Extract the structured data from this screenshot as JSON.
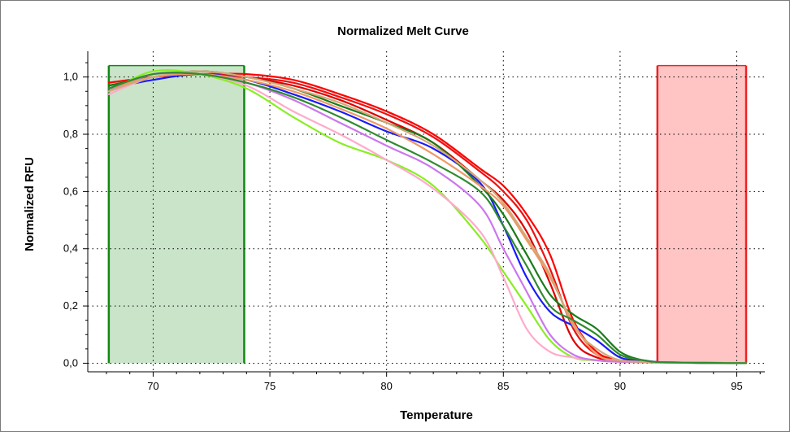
{
  "chart_data": {
    "type": "line",
    "title": "Normalized Melt Curve",
    "xlabel": "Temperature",
    "ylabel": "Normalized RFU",
    "xlim": [
      67.2,
      96.2
    ],
    "ylim": [
      -0.03,
      1.09
    ],
    "xticks": [
      70,
      75,
      80,
      85,
      90,
      95
    ],
    "xtick_labels": [
      "70",
      "75",
      "80",
      "85",
      "90",
      "95"
    ],
    "yticks": [
      0,
      0.2,
      0.4,
      0.6,
      0.8,
      1.0
    ],
    "ytick_labels": [
      "0,0",
      "0,2",
      "0,4",
      "0,6",
      "0,8",
      "1,0"
    ],
    "grid": true,
    "regions": [
      {
        "from": 68.1,
        "to": 73.9,
        "fill": "#c9e4c9",
        "edge": "#118811"
      },
      {
        "from": 91.6,
        "to": 95.4,
        "fill": "#ffc4c4",
        "edge": "#ee2222"
      }
    ],
    "series": [
      {
        "color": "#ff0000",
        "x": [
          68.1,
          70,
          72,
          74,
          76,
          78,
          80,
          82,
          84,
          85,
          86,
          87,
          88,
          89,
          90,
          91,
          92,
          95.4
        ],
        "y": [
          0.98,
          1.0,
          1.01,
          1.01,
          0.99,
          0.94,
          0.88,
          0.8,
          0.68,
          0.62,
          0.52,
          0.38,
          0.15,
          0.04,
          0.01,
          0.005,
          0.003,
          0.0
        ]
      },
      {
        "color": "#ee1111",
        "x": [
          68.1,
          70,
          72,
          74,
          76,
          78,
          80,
          82,
          84,
          85,
          86,
          87,
          88,
          89,
          90,
          91,
          92,
          95.4
        ],
        "y": [
          0.97,
          1.0,
          1.01,
          1.0,
          0.98,
          0.93,
          0.87,
          0.79,
          0.67,
          0.6,
          0.5,
          0.33,
          0.12,
          0.03,
          0.01,
          0.005,
          0.003,
          0.0
        ]
      },
      {
        "color": "#dd0000",
        "x": [
          68.1,
          70,
          72,
          74,
          76,
          78,
          80,
          82,
          84,
          85,
          86,
          87,
          88,
          89,
          90,
          91,
          92,
          95.4
        ],
        "y": [
          0.96,
          1.0,
          1.02,
          1.0,
          0.97,
          0.92,
          0.85,
          0.77,
          0.64,
          0.57,
          0.46,
          0.28,
          0.08,
          0.02,
          0.01,
          0.005,
          0.002,
          0.0
        ]
      },
      {
        "color": "#1a1aff",
        "x": [
          68.1,
          70,
          72,
          74,
          76,
          78,
          80,
          82,
          84,
          85,
          86,
          87,
          88,
          89,
          90,
          91,
          92,
          95.4
        ],
        "y": [
          0.96,
          0.99,
          1.01,
          0.99,
          0.94,
          0.88,
          0.81,
          0.75,
          0.63,
          0.48,
          0.3,
          0.18,
          0.13,
          0.08,
          0.02,
          0.01,
          0.003,
          0.0
        ]
      },
      {
        "color": "#1a7a1a",
        "x": [
          68.1,
          70,
          72,
          74,
          76,
          78,
          80,
          82,
          84,
          85,
          86,
          87,
          88,
          89,
          90,
          91,
          92,
          95.4
        ],
        "y": [
          0.97,
          1.0,
          1.02,
          1.0,
          0.96,
          0.9,
          0.84,
          0.77,
          0.62,
          0.52,
          0.38,
          0.24,
          0.17,
          0.12,
          0.04,
          0.01,
          0.003,
          0.0
        ]
      },
      {
        "color": "#88ee22",
        "x": [
          68.1,
          70,
          72,
          74,
          76,
          78,
          80,
          82,
          84,
          85,
          86,
          87,
          88,
          89,
          90,
          91,
          92,
          95.4
        ],
        "y": [
          0.95,
          1.02,
          1.01,
          0.96,
          0.86,
          0.77,
          0.71,
          0.62,
          0.44,
          0.32,
          0.2,
          0.08,
          0.02,
          0.01,
          0.005,
          0.003,
          0.002,
          0.0
        ]
      },
      {
        "color": "#ffaacc",
        "x": [
          68.1,
          70,
          72,
          74,
          76,
          78,
          80,
          82,
          84,
          85,
          86,
          87,
          88,
          89,
          90,
          91,
          92,
          95.4
        ],
        "y": [
          0.94,
          1.0,
          1.01,
          0.97,
          0.88,
          0.8,
          0.71,
          0.61,
          0.46,
          0.3,
          0.12,
          0.04,
          0.02,
          0.01,
          0.005,
          0.003,
          0.002,
          0.0
        ]
      },
      {
        "color": "#cc77ee",
        "x": [
          68.1,
          70,
          72,
          74,
          76,
          78,
          80,
          82,
          84,
          85,
          86,
          87,
          88,
          89,
          90,
          91,
          92,
          95.4
        ],
        "y": [
          0.95,
          1.01,
          1.01,
          0.98,
          0.92,
          0.84,
          0.76,
          0.68,
          0.55,
          0.4,
          0.25,
          0.1,
          0.03,
          0.01,
          0.005,
          0.003,
          0.002,
          0.0
        ]
      },
      {
        "color": "#ee9966",
        "x": [
          68.1,
          70,
          72,
          74,
          76,
          78,
          80,
          82,
          84,
          85,
          86,
          87,
          88,
          89,
          90,
          91,
          92,
          95.4
        ],
        "y": [
          0.96,
          1.0,
          1.01,
          0.99,
          0.95,
          0.89,
          0.82,
          0.73,
          0.62,
          0.55,
          0.43,
          0.3,
          0.14,
          0.03,
          0.01,
          0.005,
          0.003,
          0.0
        ]
      },
      {
        "color": "#d4a87a",
        "x": [
          68.1,
          70,
          72,
          74,
          76,
          78,
          80,
          82,
          84,
          85,
          86,
          87,
          88,
          89,
          90,
          91,
          92,
          95.4
        ],
        "y": [
          0.95,
          1.0,
          1.02,
          1.0,
          0.96,
          0.91,
          0.84,
          0.76,
          0.64,
          0.56,
          0.44,
          0.31,
          0.13,
          0.05,
          0.01,
          0.005,
          0.003,
          0.0
        ]
      },
      {
        "color": "#2e8b2e",
        "x": [
          68.1,
          70,
          72,
          74,
          76,
          78,
          80,
          82,
          84,
          85,
          86,
          87,
          88,
          89,
          90,
          91,
          92,
          95.4
        ],
        "y": [
          0.96,
          1.01,
          1.01,
          0.98,
          0.93,
          0.86,
          0.78,
          0.7,
          0.6,
          0.48,
          0.34,
          0.2,
          0.15,
          0.1,
          0.03,
          0.01,
          0.003,
          0.0
        ]
      }
    ]
  }
}
